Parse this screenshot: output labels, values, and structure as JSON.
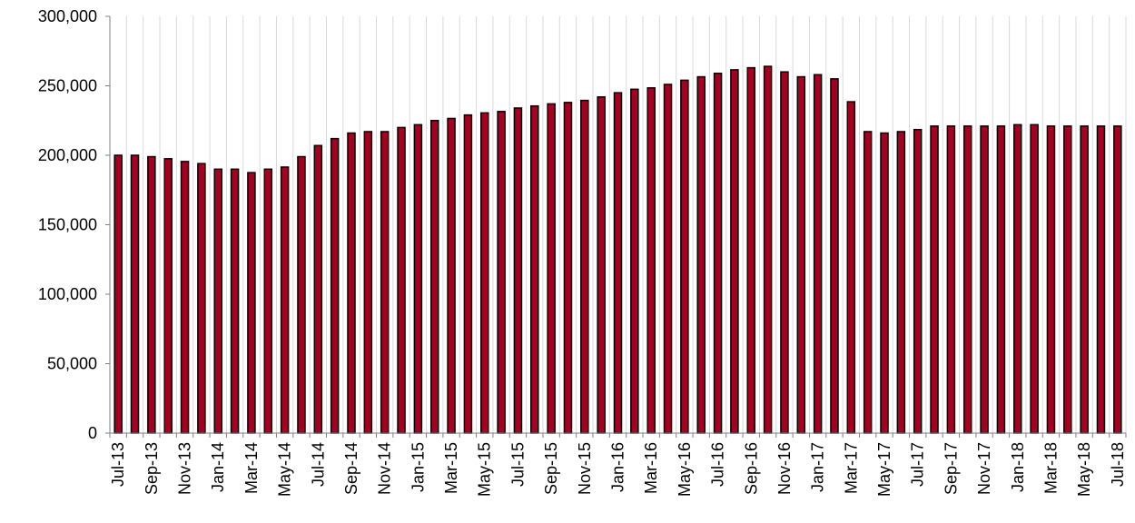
{
  "chart_data": {
    "type": "bar",
    "title": "",
    "xlabel": "",
    "ylabel": "",
    "ylim": [
      0,
      300000
    ],
    "y_ticks": [
      0,
      50000,
      100000,
      150000,
      200000,
      250000,
      300000
    ],
    "y_tick_labels": [
      "0",
      "50,000",
      "100,000",
      "150,000",
      "200,000",
      "250,000",
      "300,000"
    ],
    "grid": "vertical",
    "legend": "none",
    "bar_color": "#a50021",
    "bar_edge_color": "#000000",
    "categories": [
      "Jul-13",
      "Aug-13",
      "Sep-13",
      "Oct-13",
      "Nov-13",
      "Dec-13",
      "Jan-14",
      "Feb-14",
      "Mar-14",
      "Apr-14",
      "May-14",
      "Jun-14",
      "Jul-14",
      "Aug-14",
      "Sep-14",
      "Oct-14",
      "Nov-14",
      "Dec-14",
      "Jan-15",
      "Feb-15",
      "Mar-15",
      "Apr-15",
      "May-15",
      "Jun-15",
      "Jul-15",
      "Aug-15",
      "Sep-15",
      "Oct-15",
      "Nov-15",
      "Dec-15",
      "Jan-16",
      "Feb-16",
      "Mar-16",
      "Apr-16",
      "May-16",
      "Jun-16",
      "Jul-16",
      "Aug-16",
      "Sep-16",
      "Oct-16",
      "Nov-16",
      "Dec-16",
      "Jan-17",
      "Feb-17",
      "Mar-17",
      "Apr-17",
      "May-17",
      "Jun-17",
      "Jul-17",
      "Aug-17",
      "Sep-17",
      "Oct-17",
      "Nov-17",
      "Dec-17",
      "Jan-18",
      "Feb-18",
      "Mar-18",
      "Apr-18",
      "May-18",
      "Jun-18",
      "Jul-18"
    ],
    "values": [
      200000,
      200000,
      199000,
      197500,
      195500,
      194000,
      190000,
      190000,
      187500,
      190000,
      191500,
      199000,
      207000,
      212000,
      216000,
      217000,
      217000,
      220000,
      222000,
      225000,
      226500,
      229000,
      230500,
      231500,
      234000,
      235500,
      237000,
      238000,
      239500,
      242000,
      245000,
      247500,
      248500,
      251000,
      254000,
      256500,
      259000,
      261500,
      263000,
      264000,
      260000,
      256500,
      258000,
      255000,
      238500,
      217000,
      216000,
      217000,
      218500,
      221000,
      221000,
      221000,
      221000,
      221000,
      222000,
      222000,
      221000,
      221000,
      221000,
      221000,
      221000
    ],
    "shown_tick_labels": [
      "Jul-13",
      "Sep-13",
      "Nov-13",
      "Jan-14",
      "Mar-14",
      "May-14",
      "Jul-14",
      "Sep-14",
      "Nov-14",
      "Jan-15",
      "Mar-15",
      "May-15",
      "Jul-15",
      "Sep-15",
      "Nov-15",
      "Jan-16",
      "Mar-16",
      "May-16",
      "Jul-16",
      "Sep-16",
      "Nov-16",
      "Jan-17",
      "Mar-17",
      "May-17",
      "Jul-17",
      "Sep-17",
      "Nov-17",
      "Jan-18",
      "Mar-18",
      "May-18",
      "Jul-18"
    ]
  }
}
